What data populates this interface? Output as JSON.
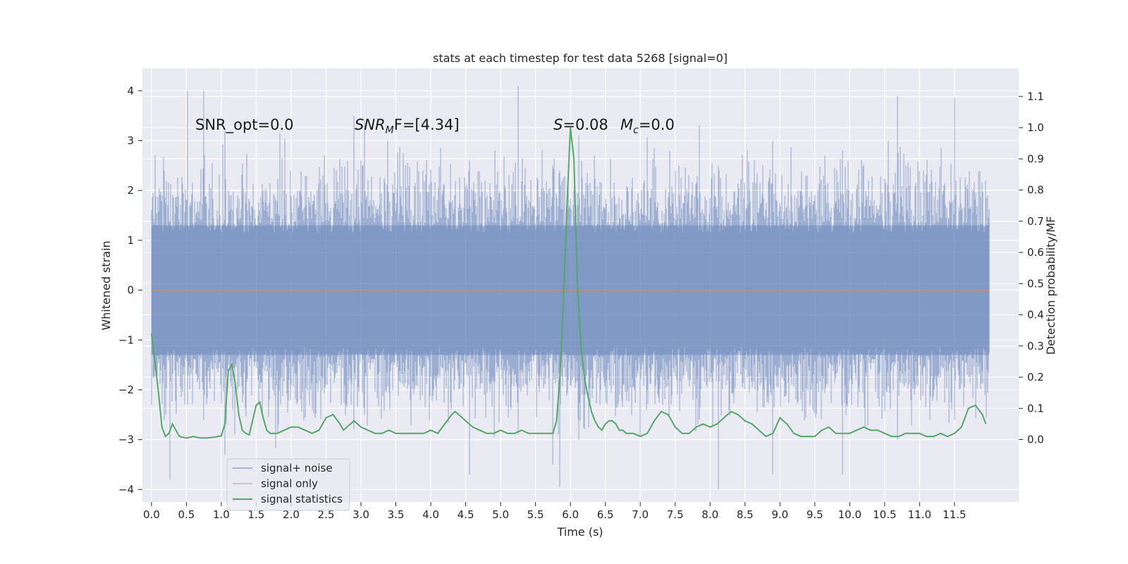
{
  "chart_data": {
    "type": "line",
    "title": "stats at each timestep for test data 5268 [signal=0]",
    "xlabel": "Time (s)",
    "ylabel_left": "Whitened strain",
    "ylabel_right": "Detection probability/MF",
    "xlim": [
      -0.13,
      12.42
    ],
    "ylim_left": [
      -4.25,
      4.45
    ],
    "ylim_right": [
      -0.2,
      1.19
    ],
    "x_ticks": [
      0.0,
      0.5,
      1.0,
      1.5,
      2.0,
      2.5,
      3.0,
      3.5,
      4.0,
      4.5,
      5.0,
      5.5,
      6.0,
      6.5,
      7.0,
      7.5,
      8.0,
      8.5,
      9.0,
      9.5,
      10.0,
      10.5,
      11.0,
      11.5
    ],
    "x_tick_labels": [
      "0.0",
      "0.5",
      "1.0",
      "1.5",
      "2.0",
      "2.5",
      "3.0",
      "3.5",
      "4.0",
      "4.5",
      "5.0",
      "5.5",
      "6.0",
      "6.5",
      "7.0",
      "7.5",
      "8.0",
      "8.5",
      "9.0",
      "9.5",
      "10.0",
      "10.5",
      "11.0",
      "11.5"
    ],
    "y_left_ticks": [
      -4,
      -3,
      -2,
      -1,
      0,
      1,
      2,
      3,
      4
    ],
    "y_left_tick_labels": [
      "−4",
      "−3",
      "−2",
      "−1",
      "0",
      "1",
      "2",
      "3",
      "4"
    ],
    "y_right_ticks": [
      0.0,
      0.1,
      0.2,
      0.3,
      0.4,
      0.5,
      0.6,
      0.7,
      0.8,
      0.9,
      1.0,
      1.1
    ],
    "y_right_tick_labels": [
      "0.0",
      "0.1",
      "0.2",
      "0.3",
      "0.4",
      "0.5",
      "0.6",
      "0.7",
      "0.8",
      "0.9",
      "1.0",
      "1.1"
    ],
    "grid": true,
    "legend_position": "bottom-left",
    "annotations": [
      {
        "text": "SNR_opt=0.0"
      },
      {
        "base": "SNR",
        "sub": "M",
        "after": "F=[4.34]"
      },
      {
        "base": "S",
        "after": "=0.08"
      },
      {
        "base": "M",
        "sub": "c",
        "after": "=0.0"
      }
    ],
    "series": [
      {
        "name": "signal+ noise",
        "axis": "left",
        "color": "#4c72b0",
        "opacity": 0.5,
        "x_range": [
          0.0,
          12.0
        ],
        "envelope_peaks": [
          {
            "x": 0.05,
            "max": 2.7,
            "min": -1.6
          },
          {
            "x": 0.18,
            "max": 2.4,
            "min": -2.6
          },
          {
            "x": 0.26,
            "max": 1.4,
            "min": -3.8
          },
          {
            "x": 0.52,
            "max": 4.0,
            "min": -2.3
          },
          {
            "x": 0.75,
            "max": 4.0,
            "min": -2.6
          },
          {
            "x": 1.05,
            "max": 3.2,
            "min": -3.3
          },
          {
            "x": 2.9,
            "max": 3.5,
            "min": -2.8
          },
          {
            "x": 3.05,
            "max": 3.4,
            "min": -2.5
          },
          {
            "x": 4.55,
            "max": 2.6,
            "min": -3.7
          },
          {
            "x": 5.25,
            "max": 4.1,
            "min": -2.9
          },
          {
            "x": 5.75,
            "max": 2.5,
            "min": -3.5
          },
          {
            "x": 5.85,
            "max": 2.4,
            "min": -3.95
          },
          {
            "x": 6.12,
            "max": 3.1,
            "min": -3.0
          },
          {
            "x": 7.85,
            "max": 3.3,
            "min": -2.6
          },
          {
            "x": 8.12,
            "max": 2.5,
            "min": -4.0
          },
          {
            "x": 8.9,
            "max": 3.0,
            "min": -3.7
          },
          {
            "x": 9.9,
            "max": 2.8,
            "min": -3.7
          },
          {
            "x": 10.68,
            "max": 3.9,
            "min": -3.0
          },
          {
            "x": 11.5,
            "max": 3.85,
            "min": -2.6
          }
        ]
      },
      {
        "name": "signal only",
        "axis": "left",
        "color": "#dd8452",
        "x": [
          0.0,
          12.0
        ],
        "y": [
          0.0,
          0.0
        ]
      },
      {
        "name": "signal statistics",
        "axis": "right",
        "color": "#55a868",
        "x": [
          0.0,
          0.05,
          0.1,
          0.15,
          0.2,
          0.25,
          0.3,
          0.35,
          0.4,
          0.5,
          0.6,
          0.7,
          0.8,
          0.9,
          1.0,
          1.05,
          1.1,
          1.15,
          1.2,
          1.25,
          1.3,
          1.35,
          1.4,
          1.5,
          1.55,
          1.6,
          1.65,
          1.7,
          1.8,
          1.9,
          2.0,
          2.1,
          2.2,
          2.3,
          2.4,
          2.5,
          2.6,
          2.7,
          2.75,
          2.8,
          2.9,
          3.0,
          3.1,
          3.2,
          3.3,
          3.4,
          3.5,
          3.6,
          3.7,
          3.8,
          3.9,
          4.0,
          4.1,
          4.2,
          4.3,
          4.35,
          4.4,
          4.5,
          4.6,
          4.7,
          4.8,
          4.9,
          5.0,
          5.1,
          5.2,
          5.3,
          5.4,
          5.5,
          5.6,
          5.7,
          5.75,
          5.8,
          5.85,
          5.9,
          5.95,
          6.0,
          6.05,
          6.1,
          6.15,
          6.2,
          6.25,
          6.3,
          6.35,
          6.4,
          6.45,
          6.5,
          6.55,
          6.6,
          6.65,
          6.7,
          6.75,
          6.8,
          6.9,
          7.0,
          7.1,
          7.2,
          7.3,
          7.4,
          7.5,
          7.6,
          7.7,
          7.8,
          7.9,
          8.0,
          8.1,
          8.2,
          8.3,
          8.4,
          8.5,
          8.6,
          8.7,
          8.8,
          8.9,
          9.0,
          9.1,
          9.2,
          9.3,
          9.4,
          9.5,
          9.6,
          9.7,
          9.8,
          9.9,
          10.0,
          10.1,
          10.2,
          10.3,
          10.4,
          10.5,
          10.6,
          10.7,
          10.8,
          10.9,
          11.0,
          11.1,
          11.2,
          11.3,
          11.4,
          11.5,
          11.6,
          11.7,
          11.8,
          11.9,
          11.95
        ],
        "y": [
          0.34,
          0.25,
          0.15,
          0.04,
          0.01,
          0.02,
          0.05,
          0.03,
          0.01,
          0.005,
          0.01,
          0.005,
          0.005,
          0.008,
          0.012,
          0.05,
          0.22,
          0.24,
          0.18,
          0.08,
          0.03,
          0.02,
          0.015,
          0.11,
          0.12,
          0.07,
          0.03,
          0.02,
          0.02,
          0.03,
          0.04,
          0.04,
          0.03,
          0.02,
          0.03,
          0.07,
          0.08,
          0.05,
          0.03,
          0.04,
          0.06,
          0.04,
          0.03,
          0.02,
          0.02,
          0.03,
          0.02,
          0.02,
          0.02,
          0.02,
          0.02,
          0.03,
          0.02,
          0.05,
          0.08,
          0.09,
          0.08,
          0.06,
          0.04,
          0.03,
          0.02,
          0.02,
          0.03,
          0.02,
          0.02,
          0.03,
          0.02,
          0.02,
          0.02,
          0.02,
          0.02,
          0.06,
          0.2,
          0.45,
          0.75,
          1.0,
          0.9,
          0.5,
          0.3,
          0.2,
          0.14,
          0.09,
          0.06,
          0.04,
          0.03,
          0.05,
          0.06,
          0.06,
          0.05,
          0.03,
          0.03,
          0.02,
          0.02,
          0.01,
          0.02,
          0.06,
          0.09,
          0.08,
          0.04,
          0.02,
          0.02,
          0.04,
          0.05,
          0.04,
          0.05,
          0.07,
          0.09,
          0.08,
          0.06,
          0.05,
          0.03,
          0.01,
          0.02,
          0.07,
          0.05,
          0.02,
          0.01,
          0.01,
          0.01,
          0.03,
          0.04,
          0.02,
          0.02,
          0.02,
          0.03,
          0.04,
          0.03,
          0.03,
          0.02,
          0.01,
          0.01,
          0.02,
          0.02,
          0.02,
          0.01,
          0.01,
          0.02,
          0.01,
          0.02,
          0.04,
          0.1,
          0.11,
          0.08,
          0.05
        ]
      }
    ]
  }
}
